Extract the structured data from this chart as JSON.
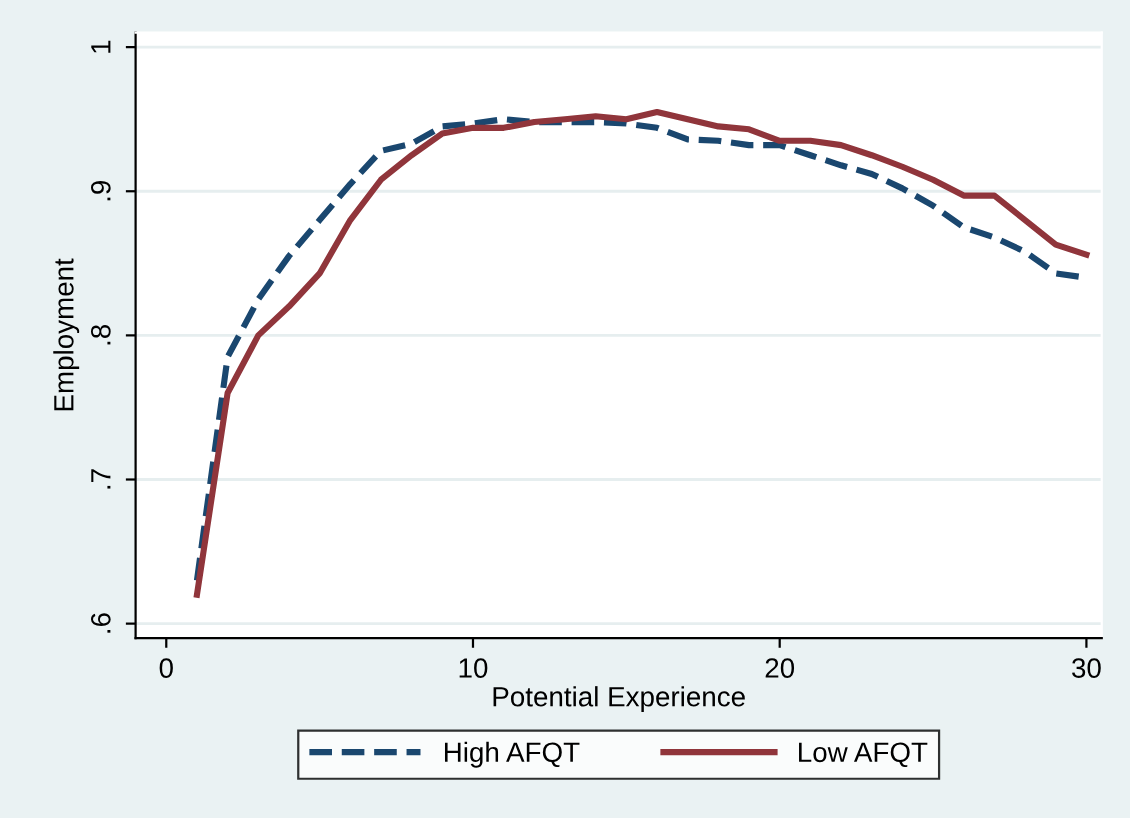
{
  "chart_data": {
    "type": "line",
    "xlabel": "Potential Experience",
    "ylabel": "Employment",
    "x": [
      1,
      2,
      3,
      4,
      5,
      6,
      7,
      8,
      9,
      10,
      11,
      12,
      13,
      14,
      15,
      16,
      17,
      18,
      19,
      20,
      21,
      22,
      23,
      24,
      25,
      26,
      27,
      28,
      29,
      30
    ],
    "series": [
      {
        "name": "High AFQT",
        "color": "#1a476f",
        "line_style": "dashed",
        "values": [
          0.63,
          0.785,
          0.825,
          0.855,
          0.88,
          0.905,
          0.928,
          0.933,
          0.945,
          0.947,
          0.95,
          0.948,
          0.948,
          0.948,
          0.947,
          0.944,
          0.936,
          0.935,
          0.932,
          0.932,
          0.925,
          0.918,
          0.912,
          0.902,
          0.89,
          0.875,
          0.868,
          0.858,
          0.843,
          0.84
        ]
      },
      {
        "name": "Low AFQT",
        "color": "#90353b",
        "line_style": "solid",
        "values": [
          0.62,
          0.76,
          0.8,
          0.82,
          0.843,
          0.88,
          0.908,
          0.925,
          0.94,
          0.944,
          0.944,
          0.948,
          0.95,
          0.952,
          0.95,
          0.955,
          0.95,
          0.945,
          0.943,
          0.935,
          0.935,
          0.932,
          0.925,
          0.917,
          0.908,
          0.897,
          0.897,
          0.88,
          0.863,
          0.856
        ]
      }
    ],
    "xlim": [
      -1,
      30.5
    ],
    "xticks": [
      0,
      10,
      20,
      30
    ],
    "ylim": [
      0.59,
      1.01
    ],
    "yticks": [
      {
        "value": 0.6,
        "label": ".6"
      },
      {
        "value": 0.7,
        "label": ".7"
      },
      {
        "value": 0.8,
        "label": ".8"
      },
      {
        "value": 0.9,
        "label": ".9"
      },
      {
        "value": 1,
        "label": "1"
      }
    ],
    "grid": "y",
    "legend": "bottom"
  }
}
